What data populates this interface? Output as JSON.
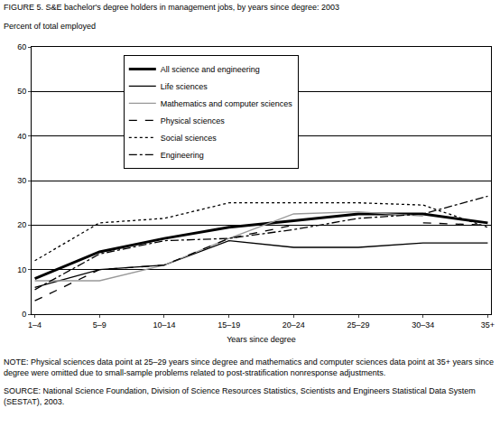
{
  "chart_data": {
    "type": "line",
    "title": "FIGURE 5.  S&E bachelor's degree holders in management jobs, by years since degree: 2003",
    "y_label": "Percent of total employed",
    "x_label": "Years since degree",
    "categories": [
      "1–4",
      "5–9",
      "10–14",
      "15–19",
      "20–24",
      "25–29",
      "30–34",
      "35+"
    ],
    "series": [
      {
        "name": "All science and engineering",
        "color": "#000000",
        "line_style": "solid",
        "values": [
          8,
          14,
          17,
          19.5,
          21,
          22.5,
          22.5,
          20.5
        ]
      },
      {
        "name": "Life sciences",
        "color": "#000000",
        "line_style": "solid",
        "values": [
          6,
          10,
          11,
          16.5,
          15,
          15,
          16,
          16
        ]
      },
      {
        "name": "Mathematics and computer sciences",
        "color": "#999999",
        "line_style": "solid",
        "values": [
          7.5,
          7.5,
          11,
          17,
          22.5,
          23,
          22,
          null
        ]
      },
      {
        "name": "Physical sciences",
        "color": "#000000",
        "line_style": "dash",
        "values": [
          3,
          10,
          11,
          17,
          20,
          null,
          20.5,
          20
        ]
      },
      {
        "name": "Social sciences",
        "color": "#000000",
        "line_style": "dot",
        "values": [
          12,
          20.5,
          21.5,
          25,
          25,
          25,
          24.5,
          19.5
        ]
      },
      {
        "name": "Engineering",
        "color": "#000000",
        "line_style": "dashdot",
        "values": [
          5.5,
          13.5,
          16.5,
          17,
          19,
          21.5,
          22.5,
          26.5
        ]
      }
    ],
    "ylim": [
      0,
      60
    ],
    "yticks": [
      0,
      10,
      20,
      30,
      40,
      50,
      60
    ],
    "grid": true,
    "legend": "top-left",
    "annotations": [
      "NOTE:  Physical sciences data point at  25–29 years since degree and mathematics and computer sciences data point at 35+ years since degree were omitted due to small-sample problems related to post-stratification nonresponse adjustments.",
      "SOURCE:  National Science Foundation, Division of Science Resources Statistics, Scientists and Engineers Statistical Data System (SESTAT), 2003."
    ]
  }
}
